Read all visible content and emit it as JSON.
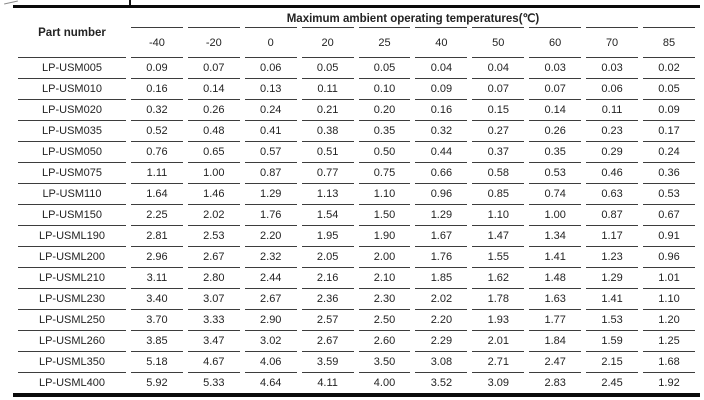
{
  "colors": {
    "background": "#ffffff",
    "border_heavy": "#0a0a0a",
    "border_light": "#3d3d3d",
    "text": "#232323"
  },
  "table": {
    "part_number_header": "Part number",
    "group_header": "Maximum ambient operating temperatures(℃)",
    "temperature_columns": [
      "-40",
      "-20",
      "0",
      "20",
      "25",
      "40",
      "50",
      "60",
      "70",
      "85"
    ],
    "rows": [
      {
        "part": "LP-USM005",
        "values": [
          "0.09",
          "0.07",
          "0.06",
          "0.05",
          "0.05",
          "0.04",
          "0.04",
          "0.03",
          "0.03",
          "0.02"
        ]
      },
      {
        "part": "LP-USM010",
        "values": [
          "0.16",
          "0.14",
          "0.13",
          "0.11",
          "0.10",
          "0.09",
          "0.07",
          "0.07",
          "0.06",
          "0.05"
        ]
      },
      {
        "part": "LP-USM020",
        "values": [
          "0.32",
          "0.26",
          "0.24",
          "0.21",
          "0.20",
          "0.16",
          "0.15",
          "0.14",
          "0.11",
          "0.09"
        ]
      },
      {
        "part": "LP-USM035",
        "values": [
          "0.52",
          "0.48",
          "0.41",
          "0.38",
          "0.35",
          "0.32",
          "0.27",
          "0.26",
          "0.23",
          "0.17"
        ]
      },
      {
        "part": "LP-USM050",
        "values": [
          "0.76",
          "0.65",
          "0.57",
          "0.51",
          "0.50",
          "0.44",
          "0.37",
          "0.35",
          "0.29",
          "0.24"
        ]
      },
      {
        "part": "LP-USM075",
        "values": [
          "1.11",
          "1.00",
          "0.87",
          "0.77",
          "0.75",
          "0.66",
          "0.58",
          "0.53",
          "0.46",
          "0.36"
        ]
      },
      {
        "part": "LP-USM110",
        "values": [
          "1.64",
          "1.46",
          "1.29",
          "1.13",
          "1.10",
          "0.96",
          "0.85",
          "0.74",
          "0.63",
          "0.53"
        ]
      },
      {
        "part": "LP-USM150",
        "values": [
          "2.25",
          "2.02",
          "1.76",
          "1.54",
          "1.50",
          "1.29",
          "1.10",
          "1.00",
          "0.87",
          "0.67"
        ]
      },
      {
        "part": "LP-USML190",
        "values": [
          "2.81",
          "2.53",
          "2.20",
          "1.95",
          "1.90",
          "1.67",
          "1.47",
          "1.34",
          "1.17",
          "0.91"
        ]
      },
      {
        "part": "LP-USML200",
        "values": [
          "2.96",
          "2.67",
          "2.32",
          "2.05",
          "2.00",
          "1.76",
          "1.55",
          "1.41",
          "1.23",
          "0.96"
        ]
      },
      {
        "part": "LP-USML210",
        "values": [
          "3.11",
          "2.80",
          "2.44",
          "2.16",
          "2.10",
          "1.85",
          "1.62",
          "1.48",
          "1.29",
          "1.01"
        ]
      },
      {
        "part": "LP-USML230",
        "values": [
          "3.40",
          "3.07",
          "2.67",
          "2.36",
          "2.30",
          "2.02",
          "1.78",
          "1.63",
          "1.41",
          "1.10"
        ]
      },
      {
        "part": "LP-USML250",
        "values": [
          "3.70",
          "3.33",
          "2.90",
          "2.57",
          "2.50",
          "2.20",
          "1.93",
          "1.77",
          "1.53",
          "1.20"
        ]
      },
      {
        "part": "LP-USML260",
        "values": [
          "3.85",
          "3.47",
          "3.02",
          "2.67",
          "2.60",
          "2.29",
          "2.01",
          "1.84",
          "1.59",
          "1.25"
        ]
      },
      {
        "part": "LP-USML350",
        "values": [
          "5.18",
          "4.67",
          "4.06",
          "3.59",
          "3.50",
          "3.08",
          "2.71",
          "2.47",
          "2.15",
          "1.68"
        ]
      },
      {
        "part": "LP-USML400",
        "values": [
          "5.92",
          "5.33",
          "4.64",
          "4.11",
          "4.00",
          "3.52",
          "3.09",
          "2.83",
          "2.45",
          "1.92"
        ]
      }
    ]
  }
}
